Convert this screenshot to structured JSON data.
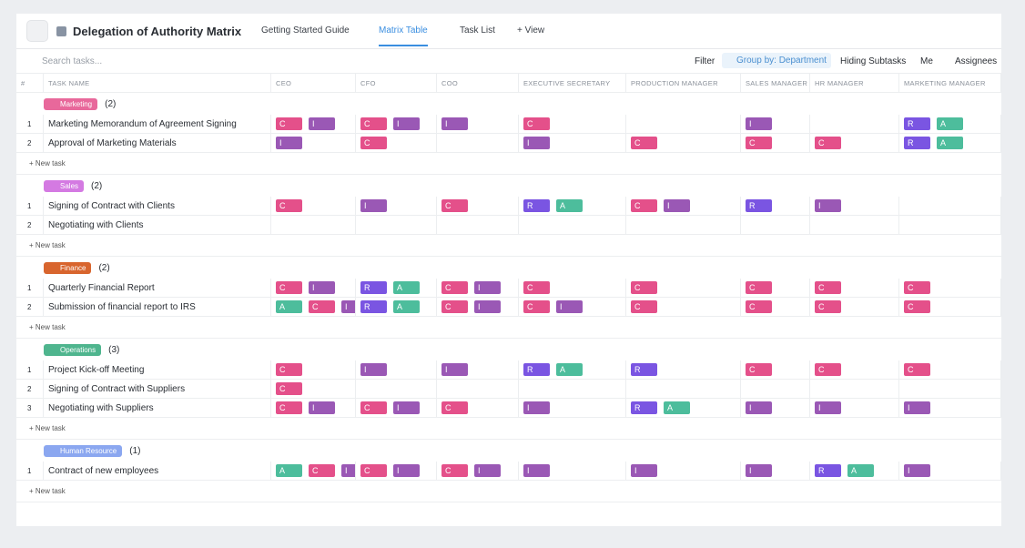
{
  "header": {
    "title": "Delegation of Authority Matrix",
    "tabs": [
      {
        "label": "Getting Started Guide",
        "active": false
      },
      {
        "label": "Matrix Table",
        "active": true
      },
      {
        "label": "Task List",
        "active": false
      },
      {
        "label": "+ View",
        "active": false
      }
    ]
  },
  "toolbar": {
    "search_placeholder": "Search tasks...",
    "filter": "Filter",
    "group_by": "Group by: Department",
    "subtasks": "Hiding Subtasks",
    "me": "Me",
    "assignees": "Assignees"
  },
  "tag_colors": {
    "C": "#e4508a",
    "I": "#9a58b5",
    "R": "#7a55e2",
    "A": "#4dbd9c"
  },
  "table": {
    "columns": [
      "#",
      "TASK NAME",
      "CEO",
      "CFO",
      "COO",
      "EXECUTIVE SECRETARY",
      "PRODUCTION MANAGER",
      "SALES MANAGER",
      "HR MANAGER",
      "MARKETING MANAGER"
    ],
    "new_task": "+ New task",
    "groups": [
      {
        "name": "Marketing",
        "count": "(2)",
        "color": "#e8689b",
        "tasks": [
          {
            "num": 1,
            "name": "Marketing Memorandum of Agreement Signing",
            "cells": [
              [
                "C",
                "I"
              ],
              [
                "C",
                "I"
              ],
              [
                "I"
              ],
              [
                "C"
              ],
              [],
              [
                "I"
              ],
              [],
              [
                "R",
                "A"
              ]
            ]
          },
          {
            "num": 2,
            "name": "Approval of Marketing Materials",
            "cells": [
              [
                "I"
              ],
              [
                "C"
              ],
              [],
              [
                "I"
              ],
              [
                "C"
              ],
              [
                "C"
              ],
              [
                "C"
              ],
              [
                "R",
                "A"
              ]
            ]
          }
        ]
      },
      {
        "name": "Sales",
        "count": "(2)",
        "color": "#d47ae2",
        "tasks": [
          {
            "num": 1,
            "name": "Signing of Contract with Clients",
            "cells": [
              [
                "C"
              ],
              [
                "I"
              ],
              [
                "C"
              ],
              [
                "R",
                "A"
              ],
              [
                "C",
                "I"
              ],
              [
                "R"
              ],
              [
                "I"
              ],
              []
            ]
          },
          {
            "num": 2,
            "name": "Negotiating with Clients",
            "cells": [
              [],
              [],
              [],
              [],
              [],
              [],
              [],
              []
            ]
          }
        ]
      },
      {
        "name": "Finance",
        "count": "(2)",
        "color": "#d8652e",
        "tasks": [
          {
            "num": 1,
            "name": "Quarterly Financial Report",
            "cells": [
              [
                "C",
                "I"
              ],
              [
                "R",
                "A"
              ],
              [
                "C",
                "I"
              ],
              [
                "C"
              ],
              [
                "C"
              ],
              [
                "C"
              ],
              [
                "C"
              ],
              [
                "C"
              ]
            ]
          },
          {
            "num": 2,
            "name": "Submission of financial report to IRS",
            "cells": [
              [
                "A",
                "C",
                "I"
              ],
              [
                "R",
                "A"
              ],
              [
                "C",
                "I"
              ],
              [
                "C",
                "I"
              ],
              [
                "C"
              ],
              [
                "C"
              ],
              [
                "C"
              ],
              [
                "C"
              ]
            ]
          }
        ]
      },
      {
        "name": "Operations",
        "count": "(3)",
        "color": "#4fb58e",
        "tasks": [
          {
            "num": 1,
            "name": "Project Kick-off Meeting",
            "cells": [
              [
                "C"
              ],
              [
                "I"
              ],
              [
                "I"
              ],
              [
                "R",
                "A"
              ],
              [
                "R"
              ],
              [
                "C"
              ],
              [
                "C"
              ],
              [
                "C"
              ]
            ]
          },
          {
            "num": 2,
            "name": "Signing of Contract with Suppliers",
            "cells": [
              [
                "C"
              ],
              [],
              [],
              [],
              [],
              [],
              [],
              []
            ]
          },
          {
            "num": 3,
            "name": "Negotiating with Suppliers",
            "cells": [
              [
                "C",
                "I"
              ],
              [
                "C",
                "I"
              ],
              [
                "C"
              ],
              [
                "I"
              ],
              [
                "R",
                "A"
              ],
              [
                "I"
              ],
              [
                "I"
              ],
              [
                "I"
              ]
            ]
          }
        ]
      },
      {
        "name": "Human Resource",
        "count": "(1)",
        "color": "#8ba7f0",
        "tasks": [
          {
            "num": 1,
            "name": "Contract of new employees",
            "cells": [
              [
                "A",
                "C",
                "I"
              ],
              [
                "C",
                "I"
              ],
              [
                "C",
                "I"
              ],
              [
                "I"
              ],
              [
                "I"
              ],
              [
                "I"
              ],
              [
                "R",
                "A"
              ],
              [
                "I"
              ]
            ]
          }
        ]
      }
    ]
  }
}
